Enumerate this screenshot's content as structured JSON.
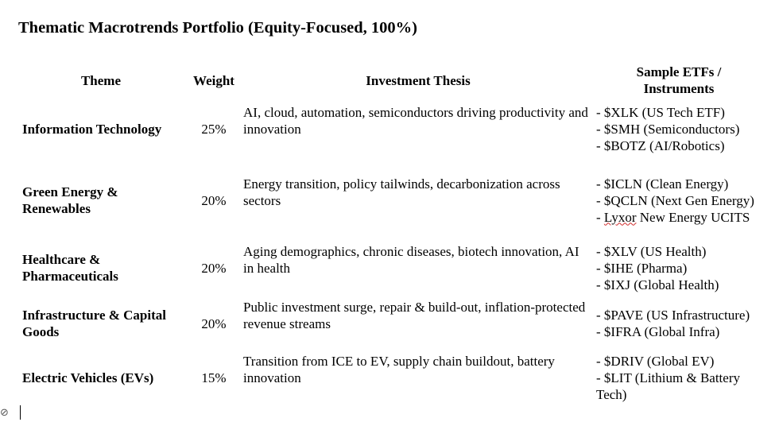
{
  "document": {
    "title": "Thematic Macrotrends Portfolio (Equity-Focused, 100%)"
  },
  "table": {
    "headers": {
      "theme": "Theme",
      "weight": "Weight",
      "thesis": "Investment Thesis",
      "etfs_line1": "Sample ETFs /",
      "etfs_line2": "Instruments"
    },
    "rows": [
      {
        "theme_line1": "Information Technology",
        "theme_line2": "",
        "weight": "25%",
        "thesis": "AI, cloud, automation, semiconductors driving productivity and innovation",
        "etfs": [
          "- $XLK (US Tech ETF)",
          "- $SMH (Semiconductors)",
          "- $BOTZ (AI/Robotics)"
        ]
      },
      {
        "theme_line1": "Green Energy &",
        "theme_line2": "Renewables",
        "weight": "20%",
        "thesis": "Energy transition, policy tailwinds, decarbonization across sectors",
        "etfs": [
          "- $ICLN (Clean Energy)",
          "- $QCLN (Next Gen Energy)"
        ],
        "etf_lyxor_word": "Lyxor",
        "etf_lyxor_rest": " New Energy UCITS",
        "etf_lyxor_prefix": "- "
      },
      {
        "theme_line1": "Healthcare &",
        "theme_line2": "Pharmaceuticals",
        "weight": "20%",
        "thesis": "Aging demographics, chronic diseases, biotech innovation, AI in health",
        "etfs": [
          "- $XLV (US Health)",
          "- $IHE (Pharma)",
          "- $IXJ (Global Health)"
        ]
      },
      {
        "theme_line1": "Infrastructure & Capital",
        "theme_line2": "Goods",
        "weight": "20%",
        "thesis": "Public investment surge, repair & build-out, inflation-protected revenue streams",
        "etfs": [
          "- $PAVE (US Infrastructure)",
          "- $IFRA (Global Infra)"
        ]
      },
      {
        "theme_line1": "Electric Vehicles (EVs)",
        "theme_line2": "",
        "weight": "15%",
        "thesis": "Transition from ICE to EV, supply chain buildout, battery innovation",
        "etfs": [
          "- $DRIV (Global EV)",
          "- $LIT (Lithium & Battery Tech)"
        ]
      }
    ]
  }
}
